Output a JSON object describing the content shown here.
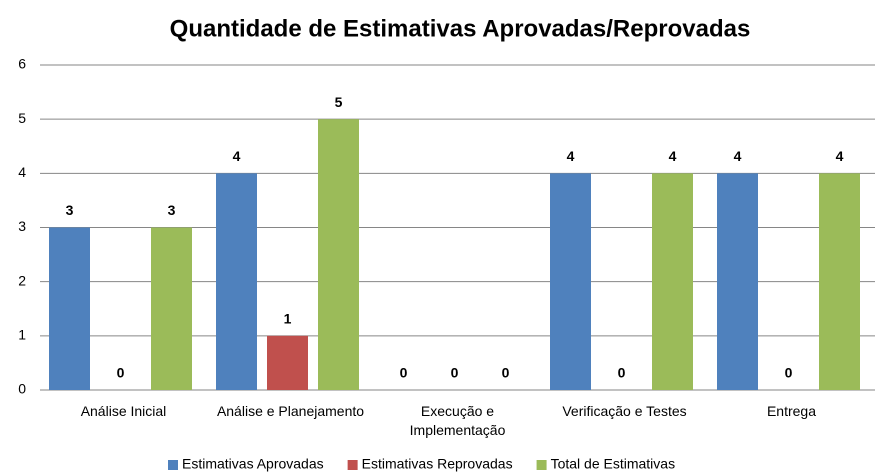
{
  "chart_data": {
    "type": "bar",
    "title": "Quantidade de Estimativas Aprovadas/Reprovadas",
    "categories": [
      "Análise Inicial",
      "Análise e Planejamento",
      "Execução e Implementação",
      "Verificação e Testes",
      "Entrega"
    ],
    "series": [
      {
        "name": "Estimativas Aprovadas",
        "color": "#4f81bd",
        "values": [
          3,
          4,
          0,
          4,
          4
        ]
      },
      {
        "name": "Estimativas Reprovadas",
        "color": "#c0504d",
        "values": [
          0,
          1,
          0,
          0,
          0
        ]
      },
      {
        "name": "Total de Estimativas",
        "color": "#9bbb59",
        "values": [
          3,
          5,
          0,
          4,
          4
        ]
      }
    ],
    "ylim": [
      0,
      6
    ],
    "yticks": [
      0,
      1,
      2,
      3,
      4,
      5,
      6
    ],
    "grid": true,
    "legend": "bottom"
  }
}
